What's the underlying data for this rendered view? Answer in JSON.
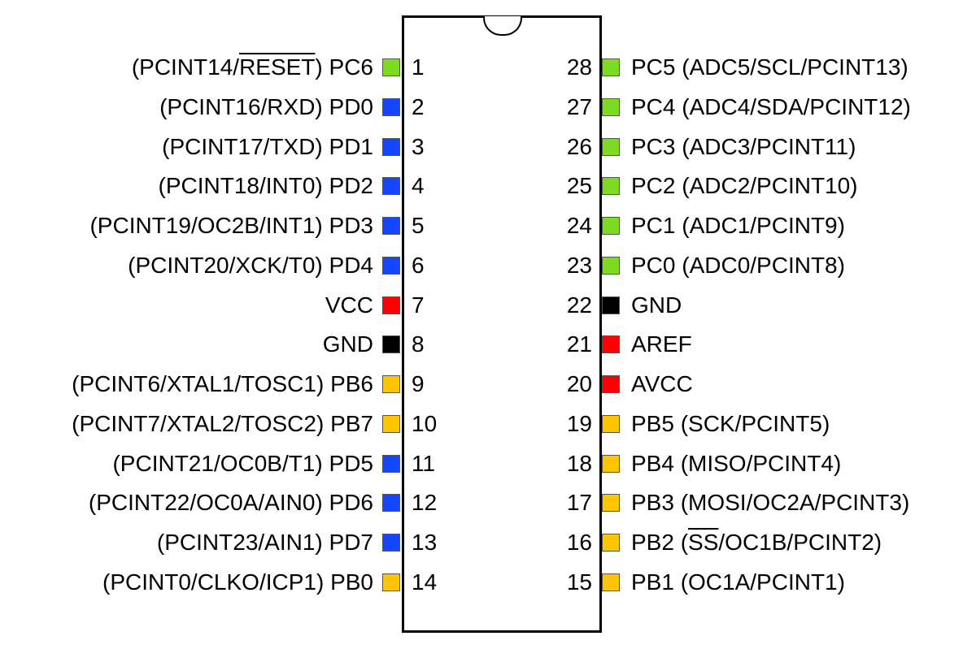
{
  "left_pins": [
    {
      "number": 1,
      "color": "#7ddc1f",
      "label": [
        "(PCINT14/",
        {
          "overline": "RESET"
        },
        ") PC6"
      ]
    },
    {
      "number": 2,
      "color": "#1446ff",
      "label": [
        "(PCINT16/RXD) PD0"
      ]
    },
    {
      "number": 3,
      "color": "#1446ff",
      "label": [
        "(PCINT17/TXD) PD1"
      ]
    },
    {
      "number": 4,
      "color": "#1446ff",
      "label": [
        "(PCINT18/INT0) PD2"
      ]
    },
    {
      "number": 5,
      "color": "#1446ff",
      "label": [
        "(PCINT19/OC2B/INT1) PD3"
      ]
    },
    {
      "number": 6,
      "color": "#1446ff",
      "label": [
        "(PCINT20/XCK/T0) PD4"
      ]
    },
    {
      "number": 7,
      "color": "#ff0000",
      "label": [
        "VCC"
      ]
    },
    {
      "number": 8,
      "color": "#000000",
      "label": [
        "GND"
      ]
    },
    {
      "number": 9,
      "color": "#ffc400",
      "label": [
        "(PCINT6/XTAL1/TOSC1) PB6"
      ]
    },
    {
      "number": 10,
      "color": "#ffc400",
      "label": [
        "(PCINT7/XTAL2/TOSC2) PB7"
      ]
    },
    {
      "number": 11,
      "color": "#1446ff",
      "label": [
        "(PCINT21/OC0B/T1) PD5"
      ]
    },
    {
      "number": 12,
      "color": "#1446ff",
      "label": [
        "(PCINT22/OC0A/AIN0) PD6"
      ]
    },
    {
      "number": 13,
      "color": "#1446ff",
      "label": [
        "(PCINT23/AIN1) PD7"
      ]
    },
    {
      "number": 14,
      "color": "#ffc400",
      "label": [
        "(PCINT0/CLKO/ICP1) PB0"
      ]
    }
  ],
  "right_pins": [
    {
      "number": 28,
      "color": "#7ddc1f",
      "label": [
        "PC5 (ADC5/SCL/PCINT13)"
      ]
    },
    {
      "number": 27,
      "color": "#7ddc1f",
      "label": [
        "PC4 (ADC4/SDA/PCINT12)"
      ]
    },
    {
      "number": 26,
      "color": "#7ddc1f",
      "label": [
        "PC3 (ADC3/PCINT11)"
      ]
    },
    {
      "number": 25,
      "color": "#7ddc1f",
      "label": [
        "PC2 (ADC2/PCINT10)"
      ]
    },
    {
      "number": 24,
      "color": "#7ddc1f",
      "label": [
        "PC1 (ADC1/PCINT9)"
      ]
    },
    {
      "number": 23,
      "color": "#7ddc1f",
      "label": [
        "PC0 (ADC0/PCINT8)"
      ]
    },
    {
      "number": 22,
      "color": "#000000",
      "label": [
        "GND"
      ]
    },
    {
      "number": 21,
      "color": "#ff0000",
      "label": [
        "AREF"
      ]
    },
    {
      "number": 20,
      "color": "#ff0000",
      "label": [
        "AVCC"
      ]
    },
    {
      "number": 19,
      "color": "#ffc400",
      "label": [
        "PB5 (SCK/PCINT5)"
      ]
    },
    {
      "number": 18,
      "color": "#ffc400",
      "label": [
        "PB4 (MISO/PCINT4)"
      ]
    },
    {
      "number": 17,
      "color": "#ffc400",
      "label": [
        "PB3 (MOSI/OC2A/PCINT3)"
      ]
    },
    {
      "number": 16,
      "color": "#ffc400",
      "label": [
        "PB2 (",
        {
          "overline": "SS"
        },
        "/OC1B/PCINT2)"
      ]
    },
    {
      "number": 15,
      "color": "#ffc400",
      "label": [
        "PB1 (OC1A/PCINT1)"
      ]
    }
  ]
}
